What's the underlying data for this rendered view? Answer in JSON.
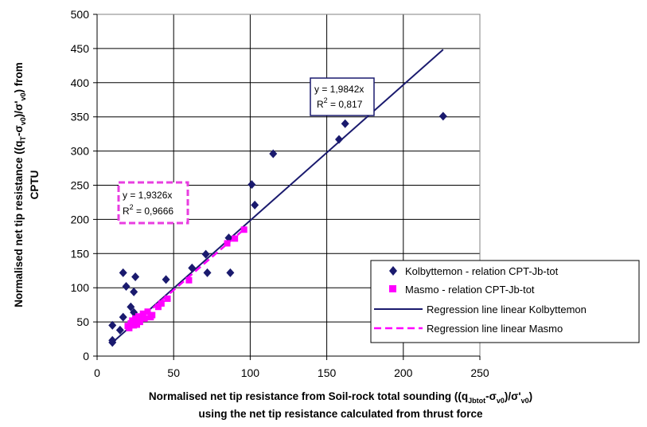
{
  "chart_data": {
    "type": "scatter",
    "xlabel": {
      "line1_parts": [
        "Normalised net tip resistance from Soil-rock total sounding ((q",
        "Jbtot",
        "-σ",
        "v0",
        ")/σ'",
        "v0",
        ")"
      ],
      "line2": "using the net tip resistance calculated from thrust force"
    },
    "ylabel": {
      "line1_parts": [
        "Normalised net tip resistance ((q",
        "T",
        "-σ",
        "v0",
        ")/σ'",
        "v0",
        ") from"
      ],
      "line2": "CPTU"
    },
    "xlim": [
      0,
      250
    ],
    "ylim": [
      0,
      500
    ],
    "x_ticks": [
      "0",
      "50",
      "100",
      "150",
      "200",
      "250"
    ],
    "y_ticks": [
      "0",
      "50",
      "100",
      "150",
      "200",
      "250",
      "300",
      "350",
      "400",
      "450",
      "500"
    ],
    "grid": true,
    "legend_position": "bottom-right",
    "series": [
      {
        "name": "Kolbyttemon - relation CPT-Jb-tot",
        "marker": "diamond",
        "color": "#1a1a6e",
        "points": [
          [
            10,
            20
          ],
          [
            10,
            23
          ],
          [
            10,
            45
          ],
          [
            15,
            38
          ],
          [
            17,
            122
          ],
          [
            17,
            57
          ],
          [
            19,
            102
          ],
          [
            22,
            72
          ],
          [
            24,
            64
          ],
          [
            24,
            94
          ],
          [
            25,
            116
          ],
          [
            45,
            112
          ],
          [
            62,
            129
          ],
          [
            71,
            149
          ],
          [
            72,
            122
          ],
          [
            86,
            173
          ],
          [
            87,
            122
          ],
          [
            101,
            251
          ],
          [
            103,
            221
          ],
          [
            115,
            296
          ],
          [
            158,
            317
          ],
          [
            162,
            340
          ],
          [
            226,
            351
          ]
        ]
      },
      {
        "name": "Masmo - relation CPT-Jb-tot",
        "marker": "square",
        "color": "#ff00ff",
        "points": [
          [
            20,
            44
          ],
          [
            21,
            41
          ],
          [
            22,
            48
          ],
          [
            23,
            52
          ],
          [
            24,
            45
          ],
          [
            25,
            55
          ],
          [
            26,
            46
          ],
          [
            27,
            58
          ],
          [
            28,
            50
          ],
          [
            30,
            62
          ],
          [
            31,
            55
          ],
          [
            33,
            65
          ],
          [
            35,
            57
          ],
          [
            36,
            60
          ],
          [
            40,
            72
          ],
          [
            42,
            77
          ],
          [
            46,
            84
          ],
          [
            60,
            111
          ],
          [
            85,
            165
          ],
          [
            90,
            172
          ],
          [
            96,
            185
          ]
        ]
      }
    ],
    "regressions": [
      {
        "name": "Regression line linear Kolbyttemon",
        "slope": 1.9842,
        "x_range": [
          10,
          226
        ],
        "color": "#1a1a6e",
        "dash": "solid",
        "eq_label": "y = 1,9842x",
        "r2_label_main": "R",
        "r2_label_sup": "2",
        "r2_label_rest": " = 0,817"
      },
      {
        "name": "Regression line linear Masmo",
        "slope": 1.9326,
        "x_range": [
          20,
          96
        ],
        "color": "#ff00ff",
        "dash": "dashed",
        "eq_label": "y = 1,9326x",
        "r2_label_main": "R",
        "r2_label_sup": "2",
        "r2_label_rest": " = 0,9666"
      }
    ]
  }
}
